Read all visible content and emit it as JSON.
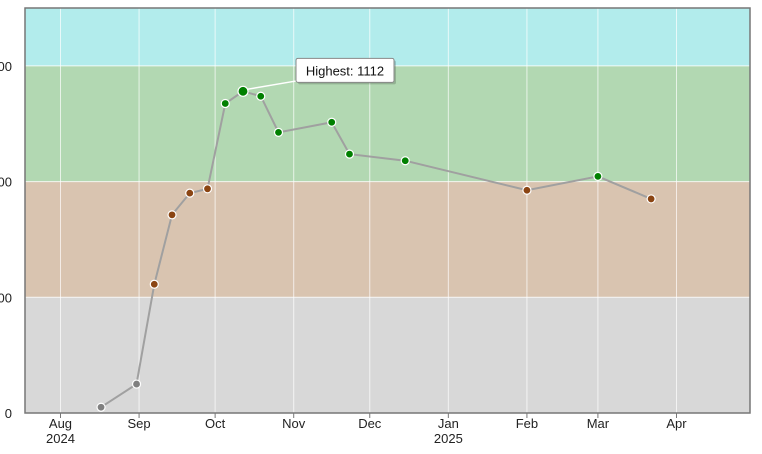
{
  "chart_data": {
    "type": "line",
    "title": "",
    "xlabel": "",
    "ylabel": "",
    "x_range": [
      "2024-07-18",
      "2025-04-30"
    ],
    "ylim": [
      0,
      1400
    ],
    "y_ticks": [
      {
        "value": 0,
        "label": "0"
      },
      {
        "value": 400,
        "label": "00"
      },
      {
        "value": 800,
        "label": "00"
      },
      {
        "value": 1200,
        "label": "00"
      }
    ],
    "x_ticks": [
      {
        "date": "2024-08-01",
        "label": "Aug",
        "sublabel": "2024"
      },
      {
        "date": "2024-09-01",
        "label": "Sep",
        "sublabel": ""
      },
      {
        "date": "2024-10-01",
        "label": "Oct",
        "sublabel": ""
      },
      {
        "date": "2024-11-01",
        "label": "Nov",
        "sublabel": ""
      },
      {
        "date": "2024-12-01",
        "label": "Dec",
        "sublabel": ""
      },
      {
        "date": "2025-01-01",
        "label": "Jan",
        "sublabel": "2025"
      },
      {
        "date": "2025-02-01",
        "label": "Feb",
        "sublabel": ""
      },
      {
        "date": "2025-03-01",
        "label": "Mar",
        "sublabel": ""
      },
      {
        "date": "2025-04-01",
        "label": "Apr",
        "sublabel": ""
      }
    ],
    "bands": [
      {
        "from": 0,
        "to": 400,
        "color": "#d8d8d8"
      },
      {
        "from": 400,
        "to": 800,
        "color": "#d9c4b0"
      },
      {
        "from": 800,
        "to": 1200,
        "color": "#b2d8b2"
      },
      {
        "from": 1200,
        "to": 1400,
        "color": "#b2ecec"
      }
    ],
    "grid": true,
    "line_color": "#a0a0a0",
    "series": [
      {
        "points": [
          {
            "x": "2024-08-17",
            "y": 20,
            "color": "#808080"
          },
          {
            "x": "2024-08-31",
            "y": 100,
            "color": "#808080"
          },
          {
            "x": "2024-09-07",
            "y": 445,
            "color": "#8b4513"
          },
          {
            "x": "2024-09-14",
            "y": 685,
            "color": "#8b4513"
          },
          {
            "x": "2024-09-21",
            "y": 760,
            "color": "#8b4513"
          },
          {
            "x": "2024-09-28",
            "y": 775,
            "color": "#8b4513"
          },
          {
            "x": "2024-10-05",
            "y": 1070,
            "color": "#008000"
          },
          {
            "x": "2024-10-12",
            "y": 1112,
            "color": "#008000"
          },
          {
            "x": "2024-10-19",
            "y": 1095,
            "color": "#008000"
          },
          {
            "x": "2024-10-26",
            "y": 970,
            "color": "#008000"
          },
          {
            "x": "2024-11-16",
            "y": 1005,
            "color": "#008000"
          },
          {
            "x": "2024-11-23",
            "y": 895,
            "color": "#008000"
          },
          {
            "x": "2024-12-15",
            "y": 872,
            "color": "#008000"
          },
          {
            "x": "2025-02-01",
            "y": 770,
            "color": "#8b4513"
          },
          {
            "x": "2025-03-01",
            "y": 818,
            "color": "#008000"
          },
          {
            "x": "2025-03-22",
            "y": 740,
            "color": "#8b4513"
          }
        ]
      }
    ],
    "annotations": [
      {
        "text": "Highest: 1112",
        "x": "2024-10-12",
        "y": 1112
      }
    ]
  }
}
